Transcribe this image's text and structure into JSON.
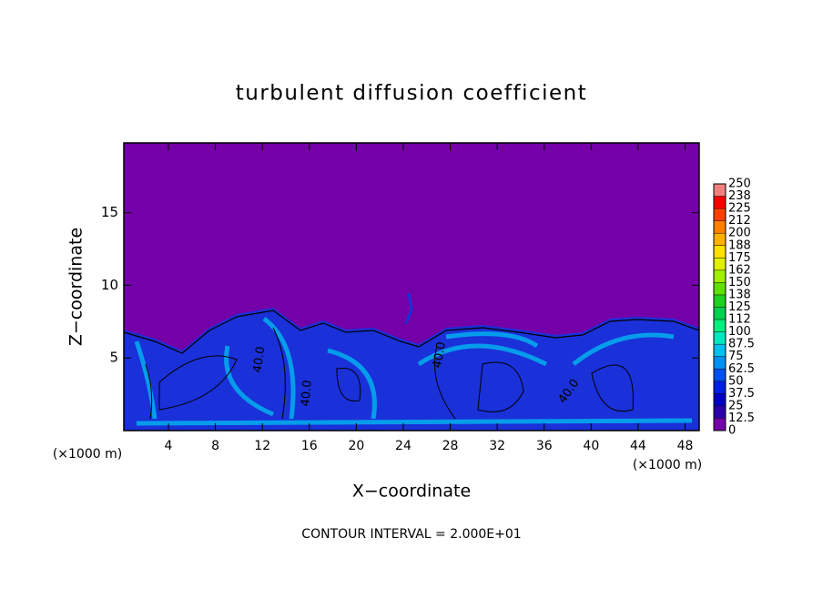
{
  "chart_data": {
    "type": "contour",
    "title": "turbulent diffusion coefficient",
    "xlabel": "X−coordinate",
    "ylabel": "Z−coordinate",
    "x_unit": "(×1000 m)",
    "y_unit": "(×1000 m)",
    "footnote": "CONTOUR INTERVAL = 2.000E+01",
    "xlim": [
      0.2,
      49.2
    ],
    "ylim": [
      0,
      19.8
    ],
    "xticks": [
      4,
      8,
      12,
      16,
      20,
      24,
      28,
      32,
      36,
      40,
      44,
      48
    ],
    "yticks": [
      5,
      10,
      15
    ],
    "contour_labels": [
      {
        "value": 40,
        "label": "40.0"
      },
      {
        "value": 40,
        "label": "40.0"
      },
      {
        "value": 40,
        "label": "40.0"
      },
      {
        "value": 40,
        "label": "40.0"
      }
    ],
    "colorbar": {
      "levels": [
        0,
        12.5,
        25,
        37.5,
        50,
        62.5,
        75,
        87.5,
        100,
        112,
        125,
        138,
        150,
        162,
        175,
        188,
        200,
        212,
        225,
        238,
        250
      ],
      "colors": [
        "#7400a8",
        "#2a00a8",
        "#0000c0",
        "#0020e0",
        "#0050f0",
        "#0090f0",
        "#00c0f0",
        "#00e8c0",
        "#00f080",
        "#00d050",
        "#20d020",
        "#60e000",
        "#a0f000",
        "#e0f000",
        "#ffe000",
        "#ffb000",
        "#ff8000",
        "#ff4000",
        "#ff0000",
        "#f08080"
      ]
    }
  }
}
